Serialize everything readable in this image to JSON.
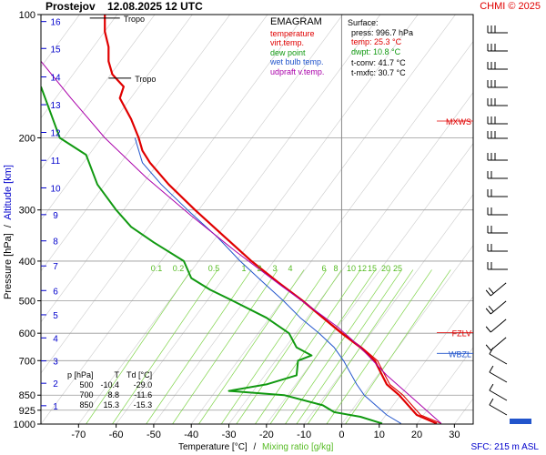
{
  "header": {
    "station": "Prostejov",
    "datetime": "12.08.2025 12 UTC",
    "copyright": "CHMI © 2025"
  },
  "legend": {
    "title": "EMAGRAM",
    "items": [
      {
        "label": "temperature",
        "color": "#e00000"
      },
      {
        "label": "virt.temp.",
        "color": "#e00000"
      },
      {
        "label": "dew point",
        "color": "#119911"
      },
      {
        "label": "wet bulb temp.",
        "color": "#2255cc"
      },
      {
        "label": "udpraft v.temp.",
        "color": "#aa00aa"
      }
    ]
  },
  "surface": {
    "title": "Surface:",
    "press": "press: 996.7 hPa",
    "temp": "temp: 25.3 °C",
    "dwpt": "dwpt: 10.8 °C",
    "tconv": "t-conv: 41.7 °C",
    "tmxfc": "t-mxfc: 30.7 °C",
    "temp_color": "#e00000",
    "dwpt_color": "#119911"
  },
  "table": {
    "headers": [
      "p [hPa]",
      "T",
      "Td [°C]"
    ],
    "rows": [
      [
        "500",
        "-10.4",
        "-29.0"
      ],
      [
        "700",
        "8.8",
        "-11.6"
      ],
      [
        "850",
        "15.3",
        "-15.3"
      ]
    ]
  },
  "footer": {
    "xlabel": "Temperature [°C]",
    "separator": "/",
    "mixing_label": "Mixing ratio [g/kg]",
    "sfc": "SFC: 215 m ASL"
  },
  "axes": {
    "ylabel_left": "Pressure [hPa]",
    "ylabel_sep": "/",
    "ylabel_right": "Altitude [km]"
  },
  "annotations": {
    "tropo_upper": "Tropo",
    "tropo_lower": "Tropo",
    "mxws": "MXWS",
    "fzlv": "FZLV",
    "wbzl": "WBZL"
  },
  "colors": {
    "temperature": "#e00000",
    "dewpoint": "#119911",
    "wetbulb": "#2255cc",
    "updraft": "#aa00aa",
    "altitude_text": "#0000cc",
    "mixing": "#7fd44a",
    "mixing_text": "#55bb22"
  },
  "chart_data": {
    "type": "line",
    "xlim": [
      -80,
      35
    ],
    "ylim": [
      1000,
      100
    ],
    "y_scale": "log",
    "x_ticks": [
      -70,
      -60,
      -50,
      -40,
      -30,
      -20,
      -10,
      0,
      10,
      20,
      30
    ],
    "y_ticks": [
      100,
      200,
      300,
      400,
      500,
      600,
      700,
      850,
      925,
      1000
    ],
    "altitude_ticks_km": [
      {
        "label": "1",
        "p": 902
      },
      {
        "label": "2",
        "p": 795
      },
      {
        "label": "3",
        "p": 701
      },
      {
        "label": "4",
        "p": 616
      },
      {
        "label": "5",
        "p": 541
      },
      {
        "label": "6",
        "p": 472
      },
      {
        "label": "7",
        "p": 411
      },
      {
        "label": "8",
        "p": 357
      },
      {
        "label": "9",
        "p": 308
      },
      {
        "label": "10",
        "p": 265
      },
      {
        "label": "11",
        "p": 227
      },
      {
        "label": "12",
        "p": 194
      },
      {
        "label": "13",
        "p": 166
      },
      {
        "label": "14",
        "p": 142
      },
      {
        "label": "15",
        "p": 121
      },
      {
        "label": "16",
        "p": 104
      }
    ],
    "mixing_ratio_lines": [
      "0.1",
      "0.2",
      "0.5",
      "1",
      "2",
      "3",
      "4",
      "6",
      "8",
      "10",
      "12",
      "15",
      "20",
      "25"
    ],
    "series": [
      {
        "name": "temperature",
        "points": [
          [
            25.3,
            997
          ],
          [
            20,
            950
          ],
          [
            15.3,
            850
          ],
          [
            12,
            800
          ],
          [
            8.8,
            700
          ],
          [
            5,
            650
          ],
          [
            0,
            600
          ],
          [
            -5,
            550
          ],
          [
            -10.4,
            500
          ],
          [
            -17,
            450
          ],
          [
            -24,
            400
          ],
          [
            -31,
            350
          ],
          [
            -39,
            300
          ],
          [
            -46,
            260
          ],
          [
            -51,
            230
          ],
          [
            -53,
            215
          ],
          [
            -54,
            200
          ],
          [
            -56,
            180
          ],
          [
            -59,
            160
          ],
          [
            -58,
            150
          ],
          [
            -61,
            140
          ],
          [
            -62,
            130
          ],
          [
            -62,
            120
          ],
          [
            -63,
            110
          ],
          [
            -63,
            100
          ]
        ]
      },
      {
        "name": "virt.temp.",
        "points": [
          [
            26.5,
            997
          ],
          [
            21,
            950
          ],
          [
            16.3,
            850
          ],
          [
            12.8,
            800
          ],
          [
            9.5,
            700
          ],
          [
            5.4,
            650
          ],
          [
            0.3,
            600
          ],
          [
            -4.8,
            550
          ],
          [
            -10.2,
            500
          ],
          [
            -16.9,
            450
          ],
          [
            -23.9,
            400
          ],
          [
            -31,
            350
          ],
          [
            -39,
            300
          ],
          [
            -46,
            260
          ],
          [
            -51,
            230
          ],
          [
            -53,
            215
          ],
          [
            -54,
            200
          ],
          [
            -56,
            180
          ],
          [
            -59,
            160
          ],
          [
            -58,
            150
          ],
          [
            -61,
            140
          ],
          [
            -62,
            130
          ],
          [
            -62,
            120
          ],
          [
            -63,
            110
          ],
          [
            -63,
            100
          ]
        ]
      },
      {
        "name": "dew point",
        "points": [
          [
            10.8,
            997
          ],
          [
            5,
            960
          ],
          [
            -2,
            935
          ],
          [
            -5,
            900
          ],
          [
            -15.3,
            850
          ],
          [
            -30,
            830
          ],
          [
            -20,
            800
          ],
          [
            -12,
            760
          ],
          [
            -11.6,
            700
          ],
          [
            -8,
            680
          ],
          [
            -12,
            650
          ],
          [
            -14,
            600
          ],
          [
            -20,
            550
          ],
          [
            -29,
            500
          ],
          [
            -35,
            470
          ],
          [
            -40,
            440
          ],
          [
            -42,
            400
          ],
          [
            -50,
            360
          ],
          [
            -56,
            330
          ],
          [
            -60,
            300
          ],
          [
            -65,
            260
          ],
          [
            -68,
            220
          ],
          [
            -75,
            200
          ],
          [
            -80,
            150
          ]
        ]
      },
      {
        "name": "wet bulb temp.",
        "points": [
          [
            15.8,
            997
          ],
          [
            12,
            950
          ],
          [
            6,
            850
          ],
          [
            4,
            800
          ],
          [
            0.5,
            700
          ],
          [
            -2,
            650
          ],
          [
            -6,
            600
          ],
          [
            -11,
            550
          ],
          [
            -15.5,
            500
          ],
          [
            -21,
            450
          ],
          [
            -27,
            400
          ],
          [
            -33,
            350
          ],
          [
            -41,
            300
          ],
          [
            -48,
            260
          ],
          [
            -53,
            230
          ],
          [
            -55,
            200
          ]
        ]
      },
      {
        "name": "udpraft v.temp.",
        "points": [
          [
            26.5,
            997
          ],
          [
            18,
            850
          ],
          [
            12,
            760
          ],
          [
            5,
            650
          ],
          [
            -1,
            580
          ],
          [
            -8,
            520
          ],
          [
            -16,
            460
          ],
          [
            -28,
            380
          ],
          [
            -40,
            310
          ],
          [
            -52,
            250
          ],
          [
            -63,
            200
          ],
          [
            -72,
            160
          ],
          [
            -80,
            130
          ]
        ]
      }
    ]
  }
}
